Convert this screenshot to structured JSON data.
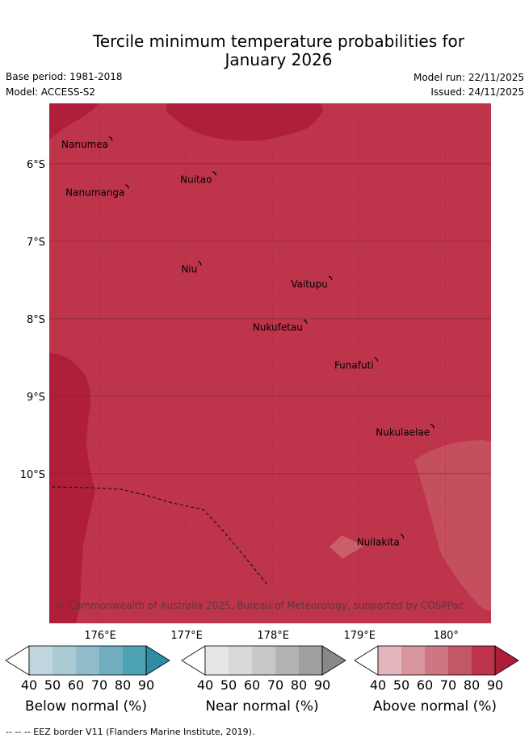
{
  "title": {
    "line1": "Tercile minimum temperature probabilities for",
    "line2": "January 2026"
  },
  "meta": {
    "base_period": "Base period: 1981-2018",
    "model": "Model: ACCESS-S2",
    "model_run": "Model run: 22/11/2025",
    "issued": "Issued: 24/11/2025"
  },
  "map": {
    "extent": {
      "lon_min": 175.42,
      "lon_max": 180.53,
      "lat_min": -11.93,
      "lat_max": -5.22
    },
    "colors": {
      "base": "#bd344b",
      "dark": "#b01f3a",
      "light": "#c44f5d",
      "lighter": "#cb5f69",
      "grid": "#6a2230"
    },
    "lat_ticks": [
      {
        "value": -6,
        "label": "6°S"
      },
      {
        "value": -7,
        "label": "7°S"
      },
      {
        "value": -8,
        "label": "8°S"
      },
      {
        "value": -9,
        "label": "9°S"
      },
      {
        "value": -10,
        "label": "10°S"
      }
    ],
    "lon_ticks": [
      {
        "value": 176,
        "label": "176°E"
      },
      {
        "value": 177,
        "label": "177°E"
      },
      {
        "value": 178,
        "label": "178°E"
      },
      {
        "value": 179,
        "label": "179°E"
      },
      {
        "value": 180,
        "label": "180°"
      }
    ],
    "islands": [
      {
        "name": "Nanumea",
        "lon": 176.13,
        "lat": -5.67
      },
      {
        "name": "Nuitao",
        "lon": 177.33,
        "lat": -6.12
      },
      {
        "name": "Nanumanga",
        "lon": 176.32,
        "lat": -6.29
      },
      {
        "name": "Niu",
        "lon": 177.16,
        "lat": -7.28
      },
      {
        "name": "Vaitupu",
        "lon": 178.67,
        "lat": -7.47
      },
      {
        "name": "Nukufetau",
        "lon": 178.38,
        "lat": -8.03
      },
      {
        "name": "Funafuti",
        "lon": 179.2,
        "lat": -8.52
      },
      {
        "name": "Nukulaelae",
        "lon": 179.85,
        "lat": -9.38
      },
      {
        "name": "Nuilakita",
        "lon": 179.5,
        "lat": -10.8
      }
    ],
    "eez_line": [
      [
        175.45,
        -10.17
      ],
      [
        175.9,
        -10.18
      ],
      [
        176.25,
        -10.2
      ],
      [
        176.55,
        -10.28
      ],
      [
        176.85,
        -10.38
      ],
      [
        177.2,
        -10.46
      ],
      [
        177.45,
        -10.76
      ],
      [
        177.7,
        -11.1
      ],
      [
        177.95,
        -11.44
      ]
    ],
    "copyright": "© Commonwealth of Australia 2025, Bureau of Meteorology, supported by COSPPac"
  },
  "colorbars": [
    {
      "title": "Below normal (%)",
      "colors": [
        "#c0d6de",
        "#a9cad1",
        "#8fbcc8",
        "#6fadbf",
        "#4ca1b3"
      ],
      "extend_color": "#2e8ca3"
    },
    {
      "title": "Near normal (%)",
      "colors": [
        "#e6e6e6",
        "#d9d9d9",
        "#c8c8c8",
        "#b4b4b4",
        "#a0a0a0"
      ],
      "extend_color": "#888888"
    },
    {
      "title": "Above normal (%)",
      "colors": [
        "#e3b6be",
        "#d7959e",
        "#cc7781",
        "#c25765",
        "#bd344b"
      ],
      "extend_color": "#ae1d37"
    }
  ],
  "colorbar_ticks": [
    "40",
    "50",
    "60",
    "70",
    "80",
    "90"
  ],
  "footer": "-- -- -- EEZ border V11 (Flanders Marine Institute, 2019)."
}
